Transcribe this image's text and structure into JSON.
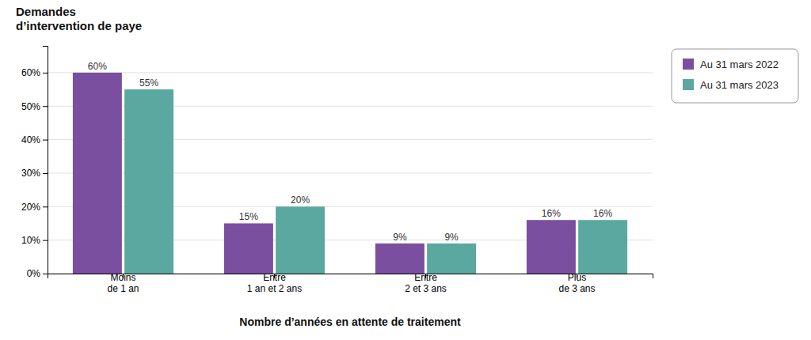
{
  "chart_data": {
    "type": "bar",
    "title": "Demandes\nd’intervention de paye",
    "x_label": "Nombre d’années en attente de traitement",
    "categories": [
      "Moins\nde 1 an",
      "Entre\n1 an et 2 ans",
      "Entre\n2 et 3 ans",
      "Plus\nde 3 ans"
    ],
    "series": [
      {
        "name": "Au 31 mars 2022",
        "color": "#7b4fa0",
        "values": [
          60,
          15,
          9,
          16
        ],
        "value_labels": [
          "60%",
          "15%",
          "9%",
          "16%"
        ]
      },
      {
        "name": "Au 31 mars 2023",
        "color": "#5ba8a0",
        "values": [
          55,
          20,
          9,
          16
        ],
        "value_labels": [
          "55%",
          "20%",
          "9%",
          "16%"
        ]
      }
    ],
    "ylim": [
      0,
      68
    ],
    "yticks": [
      {
        "value": 0,
        "label": "0%"
      },
      {
        "value": 10,
        "label": "10%"
      },
      {
        "value": 20,
        "label": "20%"
      },
      {
        "value": 30,
        "label": "30%"
      },
      {
        "value": 40,
        "label": "40%"
      },
      {
        "value": 50,
        "label": "50%"
      },
      {
        "value": 60,
        "label": "60%"
      }
    ],
    "grid": true,
    "data_labels": true,
    "legend": "right"
  }
}
